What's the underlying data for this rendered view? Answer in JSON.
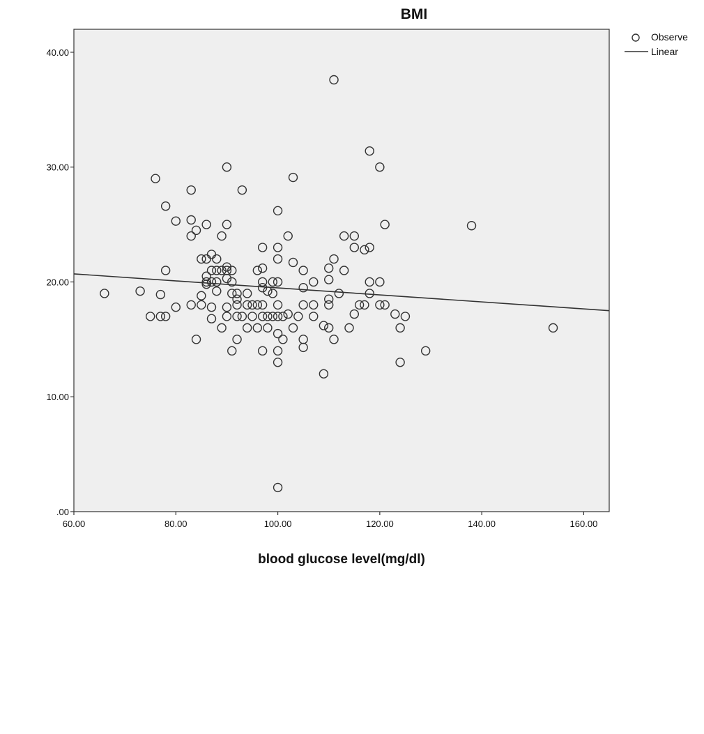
{
  "chart_data": {
    "type": "scatter",
    "title": "BMI",
    "xlabel": "blood glucose level(mg/dl)",
    "ylabel": "",
    "xlim": [
      60,
      165
    ],
    "ylim": [
      0,
      42
    ],
    "x_ticks": [
      60,
      80,
      100,
      120,
      140,
      160
    ],
    "x_tick_labels": [
      "60.00",
      "80.00",
      "100.00",
      "120.00",
      "140.00",
      "160.00"
    ],
    "y_ticks": [
      0,
      10,
      20,
      30,
      40
    ],
    "y_tick_labels": [
      ".00",
      "10.00",
      "20.00",
      "30.00",
      "40.00"
    ],
    "grid": false,
    "legend_position": "top-right",
    "legend": [
      {
        "label": "Observe",
        "marker": "circle"
      },
      {
        "label": "Linear",
        "marker": "line"
      }
    ],
    "colors": {
      "plot_background": "#efefef",
      "page_background": "#ffffff",
      "marker_stroke": "#333333",
      "line": "#333333"
    },
    "series": [
      {
        "name": "Observe",
        "kind": "scatter",
        "points": [
          [
            66,
            19
          ],
          [
            73,
            19.2
          ],
          [
            75,
            17
          ],
          [
            76,
            29
          ],
          [
            77,
            18.9
          ],
          [
            77,
            17
          ],
          [
            78,
            26.6
          ],
          [
            78,
            21
          ],
          [
            78,
            17
          ],
          [
            80,
            25.3
          ],
          [
            80,
            17.8
          ],
          [
            83,
            28
          ],
          [
            83,
            25.4
          ],
          [
            83,
            24
          ],
          [
            83,
            18
          ],
          [
            84,
            24.5
          ],
          [
            84,
            15
          ],
          [
            85,
            22
          ],
          [
            85,
            18.8
          ],
          [
            85,
            18
          ],
          [
            86,
            25
          ],
          [
            86,
            20.5
          ],
          [
            86,
            20
          ],
          [
            86,
            19.8
          ],
          [
            86,
            22
          ],
          [
            87,
            22.4
          ],
          [
            87,
            21
          ],
          [
            87,
            20
          ],
          [
            87,
            17.8
          ],
          [
            87,
            16.8
          ],
          [
            88,
            22
          ],
          [
            88,
            21
          ],
          [
            88,
            20
          ],
          [
            88,
            19.2
          ],
          [
            89,
            24
          ],
          [
            89,
            21
          ],
          [
            89,
            16
          ],
          [
            90,
            30
          ],
          [
            90,
            25
          ],
          [
            90,
            21.3
          ],
          [
            90,
            21
          ],
          [
            90,
            20.3
          ],
          [
            90,
            17.8
          ],
          [
            90,
            17
          ],
          [
            91,
            21
          ],
          [
            91,
            20
          ],
          [
            91,
            19
          ],
          [
            91,
            14
          ],
          [
            92,
            19
          ],
          [
            92,
            18.5
          ],
          [
            92,
            18
          ],
          [
            92,
            17
          ],
          [
            92,
            15
          ],
          [
            93,
            28
          ],
          [
            93,
            17
          ],
          [
            94,
            19
          ],
          [
            94,
            18
          ],
          [
            94,
            16
          ],
          [
            95,
            18
          ],
          [
            95,
            17
          ],
          [
            96,
            21
          ],
          [
            96,
            18
          ],
          [
            96,
            16
          ],
          [
            97,
            23
          ],
          [
            97,
            21.2
          ],
          [
            97,
            20
          ],
          [
            97,
            19.5
          ],
          [
            97,
            18
          ],
          [
            97,
            17
          ],
          [
            97,
            14
          ],
          [
            98,
            19.2
          ],
          [
            98,
            17
          ],
          [
            98,
            16
          ],
          [
            99,
            20
          ],
          [
            99,
            19
          ],
          [
            99,
            17
          ],
          [
            100,
            26.2
          ],
          [
            100,
            23
          ],
          [
            100,
            22
          ],
          [
            100,
            20
          ],
          [
            100,
            18
          ],
          [
            100,
            17
          ],
          [
            100,
            15.5
          ],
          [
            100,
            14
          ],
          [
            100,
            13
          ],
          [
            100,
            2.1
          ],
          [
            101,
            17
          ],
          [
            101,
            15
          ],
          [
            102,
            24
          ],
          [
            102,
            17.2
          ],
          [
            103,
            29.1
          ],
          [
            103,
            21.7
          ],
          [
            103,
            16
          ],
          [
            104,
            17
          ],
          [
            105,
            21
          ],
          [
            105,
            19.5
          ],
          [
            105,
            18
          ],
          [
            105,
            15
          ],
          [
            105,
            14.3
          ],
          [
            107,
            20
          ],
          [
            107,
            18
          ],
          [
            107,
            17
          ],
          [
            109,
            16.2
          ],
          [
            109,
            12
          ],
          [
            110,
            21.2
          ],
          [
            110,
            20.2
          ],
          [
            110,
            18.5
          ],
          [
            110,
            18
          ],
          [
            110,
            16
          ],
          [
            111,
            37.6
          ],
          [
            111,
            22
          ],
          [
            111,
            15
          ],
          [
            112,
            19
          ],
          [
            113,
            24
          ],
          [
            113,
            21
          ],
          [
            114,
            16
          ],
          [
            115,
            24
          ],
          [
            115,
            23
          ],
          [
            115,
            17.2
          ],
          [
            116,
            18
          ],
          [
            117,
            22.8
          ],
          [
            117,
            18
          ],
          [
            118,
            31.4
          ],
          [
            118,
            23
          ],
          [
            118,
            20
          ],
          [
            118,
            19
          ],
          [
            120,
            30
          ],
          [
            120,
            20
          ],
          [
            120,
            18
          ],
          [
            121,
            25
          ],
          [
            121,
            18
          ],
          [
            123,
            17.2
          ],
          [
            124,
            16
          ],
          [
            124,
            13
          ],
          [
            125,
            17
          ],
          [
            129,
            14
          ],
          [
            138,
            24.9
          ],
          [
            154,
            16
          ]
        ]
      },
      {
        "name": "Linear",
        "kind": "line",
        "points": [
          [
            60,
            20.7
          ],
          [
            165,
            17.5
          ]
        ]
      }
    ]
  }
}
